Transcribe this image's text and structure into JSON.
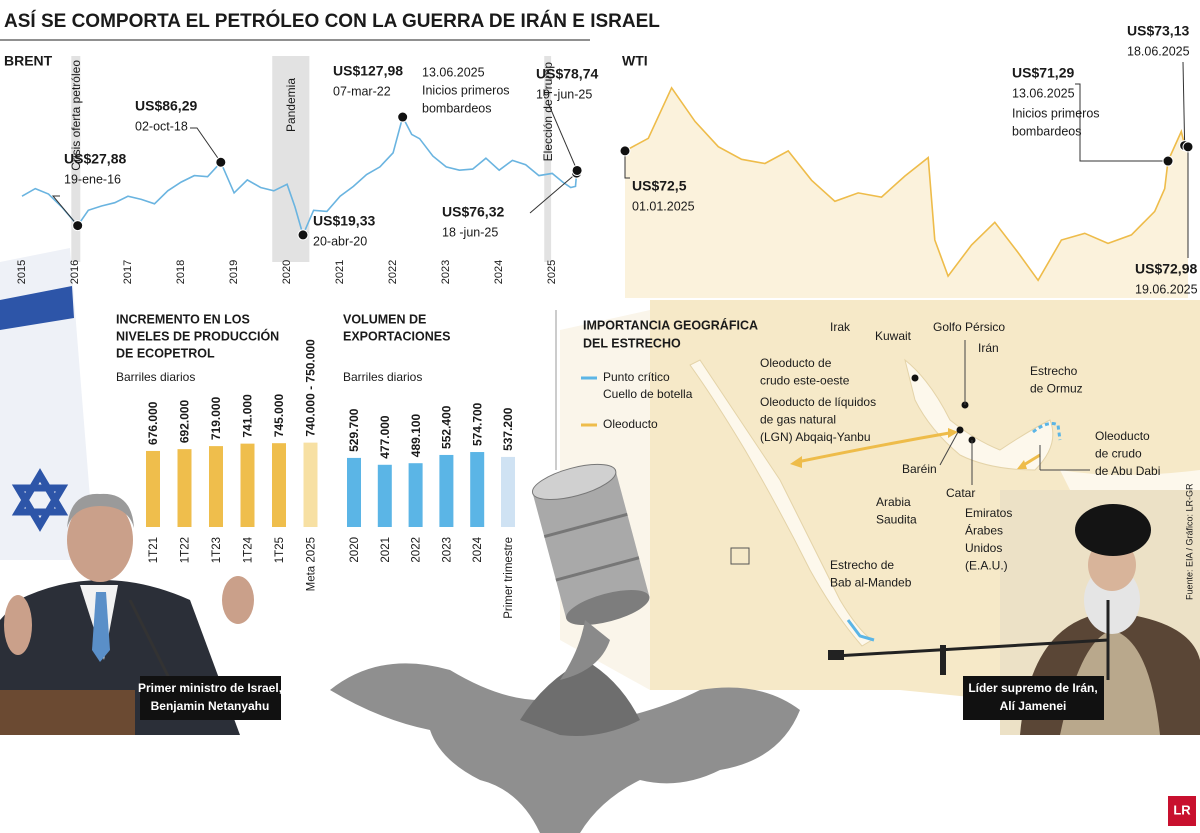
{
  "title": "ASÍ SE COMPORTA EL PETRÓLEO CON LA GUERRA DE IRÁN E ISRAEL",
  "chart_data": [
    {
      "type": "line",
      "title": "BRENT",
      "color": "#6ab4e0",
      "x": [
        2015,
        2015.25,
        2015.5,
        2015.75,
        2016.05,
        2016.25,
        2016.5,
        2016.75,
        2017,
        2017.25,
        2017.5,
        2017.75,
        2018,
        2018.25,
        2018.5,
        2018.75,
        2019,
        2019.25,
        2019.5,
        2019.75,
        2020,
        2020.15,
        2020.3,
        2020.5,
        2020.75,
        2021,
        2021.25,
        2021.5,
        2021.75,
        2022,
        2022.18,
        2022.35,
        2022.5,
        2022.75,
        2023,
        2023.25,
        2023.5,
        2023.75,
        2024,
        2024.25,
        2024.5,
        2024.75,
        2025,
        2025.2,
        2025.35,
        2025.44,
        2025.46,
        2025.47
      ],
      "values": [
        55,
        62,
        57,
        45,
        27.88,
        42,
        46,
        49,
        55,
        52,
        48,
        60,
        68,
        74,
        73,
        86.29,
        58,
        70,
        63,
        60,
        66,
        45,
        19.33,
        42,
        41,
        55,
        64,
        75,
        82,
        95,
        127.98,
        112,
        108,
        92,
        82,
        79,
        80,
        90,
        79,
        88,
        84,
        74,
        76,
        68,
        63,
        64,
        76.32,
        78.74
      ],
      "xlim": [
        2015,
        2025.6
      ],
      "ylim": [
        10,
        140
      ],
      "xticks": [
        2015,
        2016,
        2017,
        2018,
        2019,
        2020,
        2021,
        2022,
        2023,
        2024,
        2025
      ],
      "bands": [
        {
          "label": "Crisis oferta petróleo",
          "x0": 2015.93,
          "x1": 2016.1
        },
        {
          "label": "Pandemia",
          "x0": 2019.72,
          "x1": 2020.42
        },
        {
          "label": "Elección de Trump",
          "x0": 2024.85,
          "x1": 2024.98
        }
      ],
      "annotations": [
        {
          "x": 2016.05,
          "value": 27.88,
          "value_label": "US$27,88",
          "date_label": "19-ene-16"
        },
        {
          "x": 2018.75,
          "value": 86.29,
          "value_label": "US$86,29",
          "date_label": "02-oct-18"
        },
        {
          "x": 2022.18,
          "value": 127.98,
          "value_label": "US$127,98",
          "date_label": "07-mar-22"
        },
        {
          "x": 2020.3,
          "value": 19.33,
          "value_label": "US$19,33",
          "date_label": "20-abr-20"
        },
        {
          "x": 2025.46,
          "value": 76.32,
          "value_label": "US$76,32",
          "date_label": "18 -jun-25"
        },
        {
          "x": 2025.47,
          "value": 78.74,
          "value_label": "US$78,74",
          "date_label": "19 -jun-25"
        }
      ],
      "note_lines": [
        "13.06.2025",
        "Inicios primeros",
        "bombardeos"
      ]
    },
    {
      "type": "line",
      "title": "WTI",
      "color": "#eebc4a",
      "area_color": "#fbf2dc",
      "x": [
        "2025-01-01",
        "2025-01-08",
        "2025-01-15",
        "2025-01-22",
        "2025-01-29",
        "2025-02-05",
        "2025-02-12",
        "2025-02-19",
        "2025-02-26",
        "2025-03-05",
        "2025-03-12",
        "2025-03-19",
        "2025-03-26",
        "2025-04-02",
        "2025-04-04",
        "2025-04-08",
        "2025-04-15",
        "2025-04-22",
        "2025-04-29",
        "2025-05-05",
        "2025-05-12",
        "2025-05-19",
        "2025-05-26",
        "2025-06-02",
        "2025-06-09",
        "2025-06-12",
        "2025-06-13",
        "2025-06-17",
        "2025-06-18",
        "2025-06-19"
      ],
      "values": [
        72.5,
        74,
        80,
        76,
        73,
        71.5,
        71,
        72.5,
        69,
        66.5,
        67.5,
        67,
        69.5,
        71.7,
        61.9,
        57.6,
        61.3,
        64,
        60.4,
        57.1,
        61.9,
        62.7,
        61.5,
        62.5,
        65.3,
        68,
        71.29,
        74.8,
        73.13,
        72.98
      ],
      "xlim": [
        "2025-01-01",
        "2025-06-19"
      ],
      "ylim": [
        55,
        82
      ],
      "annotations": [
        {
          "x": "2025-01-01",
          "value": 72.5,
          "value_label": "US$72,5",
          "date_label": "01.01.2025"
        },
        {
          "x": "2025-06-13",
          "value": 71.29,
          "value_label": "US$71,29",
          "date_label": "13.06.2025",
          "note_lines": [
            "Inicios primeros",
            "bombardeos"
          ]
        },
        {
          "x": "2025-06-18",
          "value": 73.13,
          "value_label": "US$73,13",
          "date_label": "18.06.2025"
        },
        {
          "x": "2025-06-19",
          "value": 72.98,
          "value_label": "US$72,98",
          "date_label": "19.06.2025"
        }
      ]
    },
    {
      "type": "bar",
      "title_lines": [
        "INCREMENTO EN LOS",
        "NIVELES DE PRODUCCIÓN",
        "DE ECOPETROL"
      ],
      "subtitle": "Barriles diarios",
      "categories": [
        "1T21",
        "1T22",
        "1T23",
        "1T24",
        "1T25"
      ],
      "values": [
        676000,
        692000,
        719000,
        741000,
        745000
      ],
      "value_labels": [
        "676.000",
        "692.000",
        "719.000",
        "741.000",
        "745.000"
      ],
      "color": "#efbe4c",
      "ylim": [
        0,
        800000
      ],
      "target": {
        "category": "Meta 2025",
        "range": [
          740000,
          750000
        ],
        "label": "740.000 - 750.000",
        "color": "#f7e0a3"
      }
    },
    {
      "type": "bar",
      "title_lines": [
        "VOLUMEN DE",
        "EXPORTACIONES"
      ],
      "subtitle": "Barriles diarios",
      "categories": [
        "2020",
        "2021",
        "2022",
        "2023",
        "2024",
        "Primer trimestre"
      ],
      "values": [
        529700,
        477000,
        489100,
        552400,
        574700,
        537200
      ],
      "value_labels": [
        "529.700",
        "477.000",
        "489.100",
        "552.400",
        "574.700",
        "537.200"
      ],
      "colors": [
        "#5bb5e6",
        "#5bb5e6",
        "#5bb5e6",
        "#5bb5e6",
        "#5bb5e6",
        "#cfe2f3"
      ],
      "ylim": [
        0,
        690000
      ]
    }
  ],
  "map": {
    "title_lines": [
      "IMPORTANCIA GEOGRÁFICA",
      "DEL ESTRECHO"
    ],
    "legend": [
      {
        "lines": [
          "Punto crítico",
          "Cuello de botella"
        ],
        "color": "#5bb5e6"
      },
      {
        "lines": [
          "Oleoducto"
        ],
        "color": "#eebc4a"
      }
    ],
    "labels": [
      {
        "lines": [
          "Irak"
        ]
      },
      {
        "lines": [
          "Kuwait"
        ]
      },
      {
        "lines": [
          "Golfo Pérsico"
        ]
      },
      {
        "lines": [
          "Irán"
        ]
      },
      {
        "lines": [
          "Estrecho",
          "de Ormuz"
        ]
      },
      {
        "lines": [
          "Oleoducto de",
          "crudo este-oeste"
        ]
      },
      {
        "lines": [
          "Oleoducto de líquidos",
          "de gas natural",
          "(LGN) Abqaiq-Yanbu"
        ]
      },
      {
        "lines": [
          "Baréin"
        ]
      },
      {
        "lines": [
          "Oleoducto",
          "de crudo",
          "de Abu Dabi"
        ]
      },
      {
        "lines": [
          "Arabia",
          "Saudita"
        ]
      },
      {
        "lines": [
          "Catar"
        ]
      },
      {
        "lines": [
          "Emiratos",
          "Árabes",
          "Unidos",
          "(E.A.U.)"
        ]
      },
      {
        "lines": [
          "Estrecho de",
          "Bab al-Mandeb"
        ]
      }
    ]
  },
  "captions": [
    {
      "lines": [
        "Primer ministro de Israel,",
        "Benjamin Netanyahu"
      ]
    },
    {
      "lines": [
        "Líder supremo de Irán,",
        "Alí Jamenei"
      ]
    }
  ],
  "source": "Fuente: EIA / Gráfico: LR-GR",
  "logo": "LR"
}
